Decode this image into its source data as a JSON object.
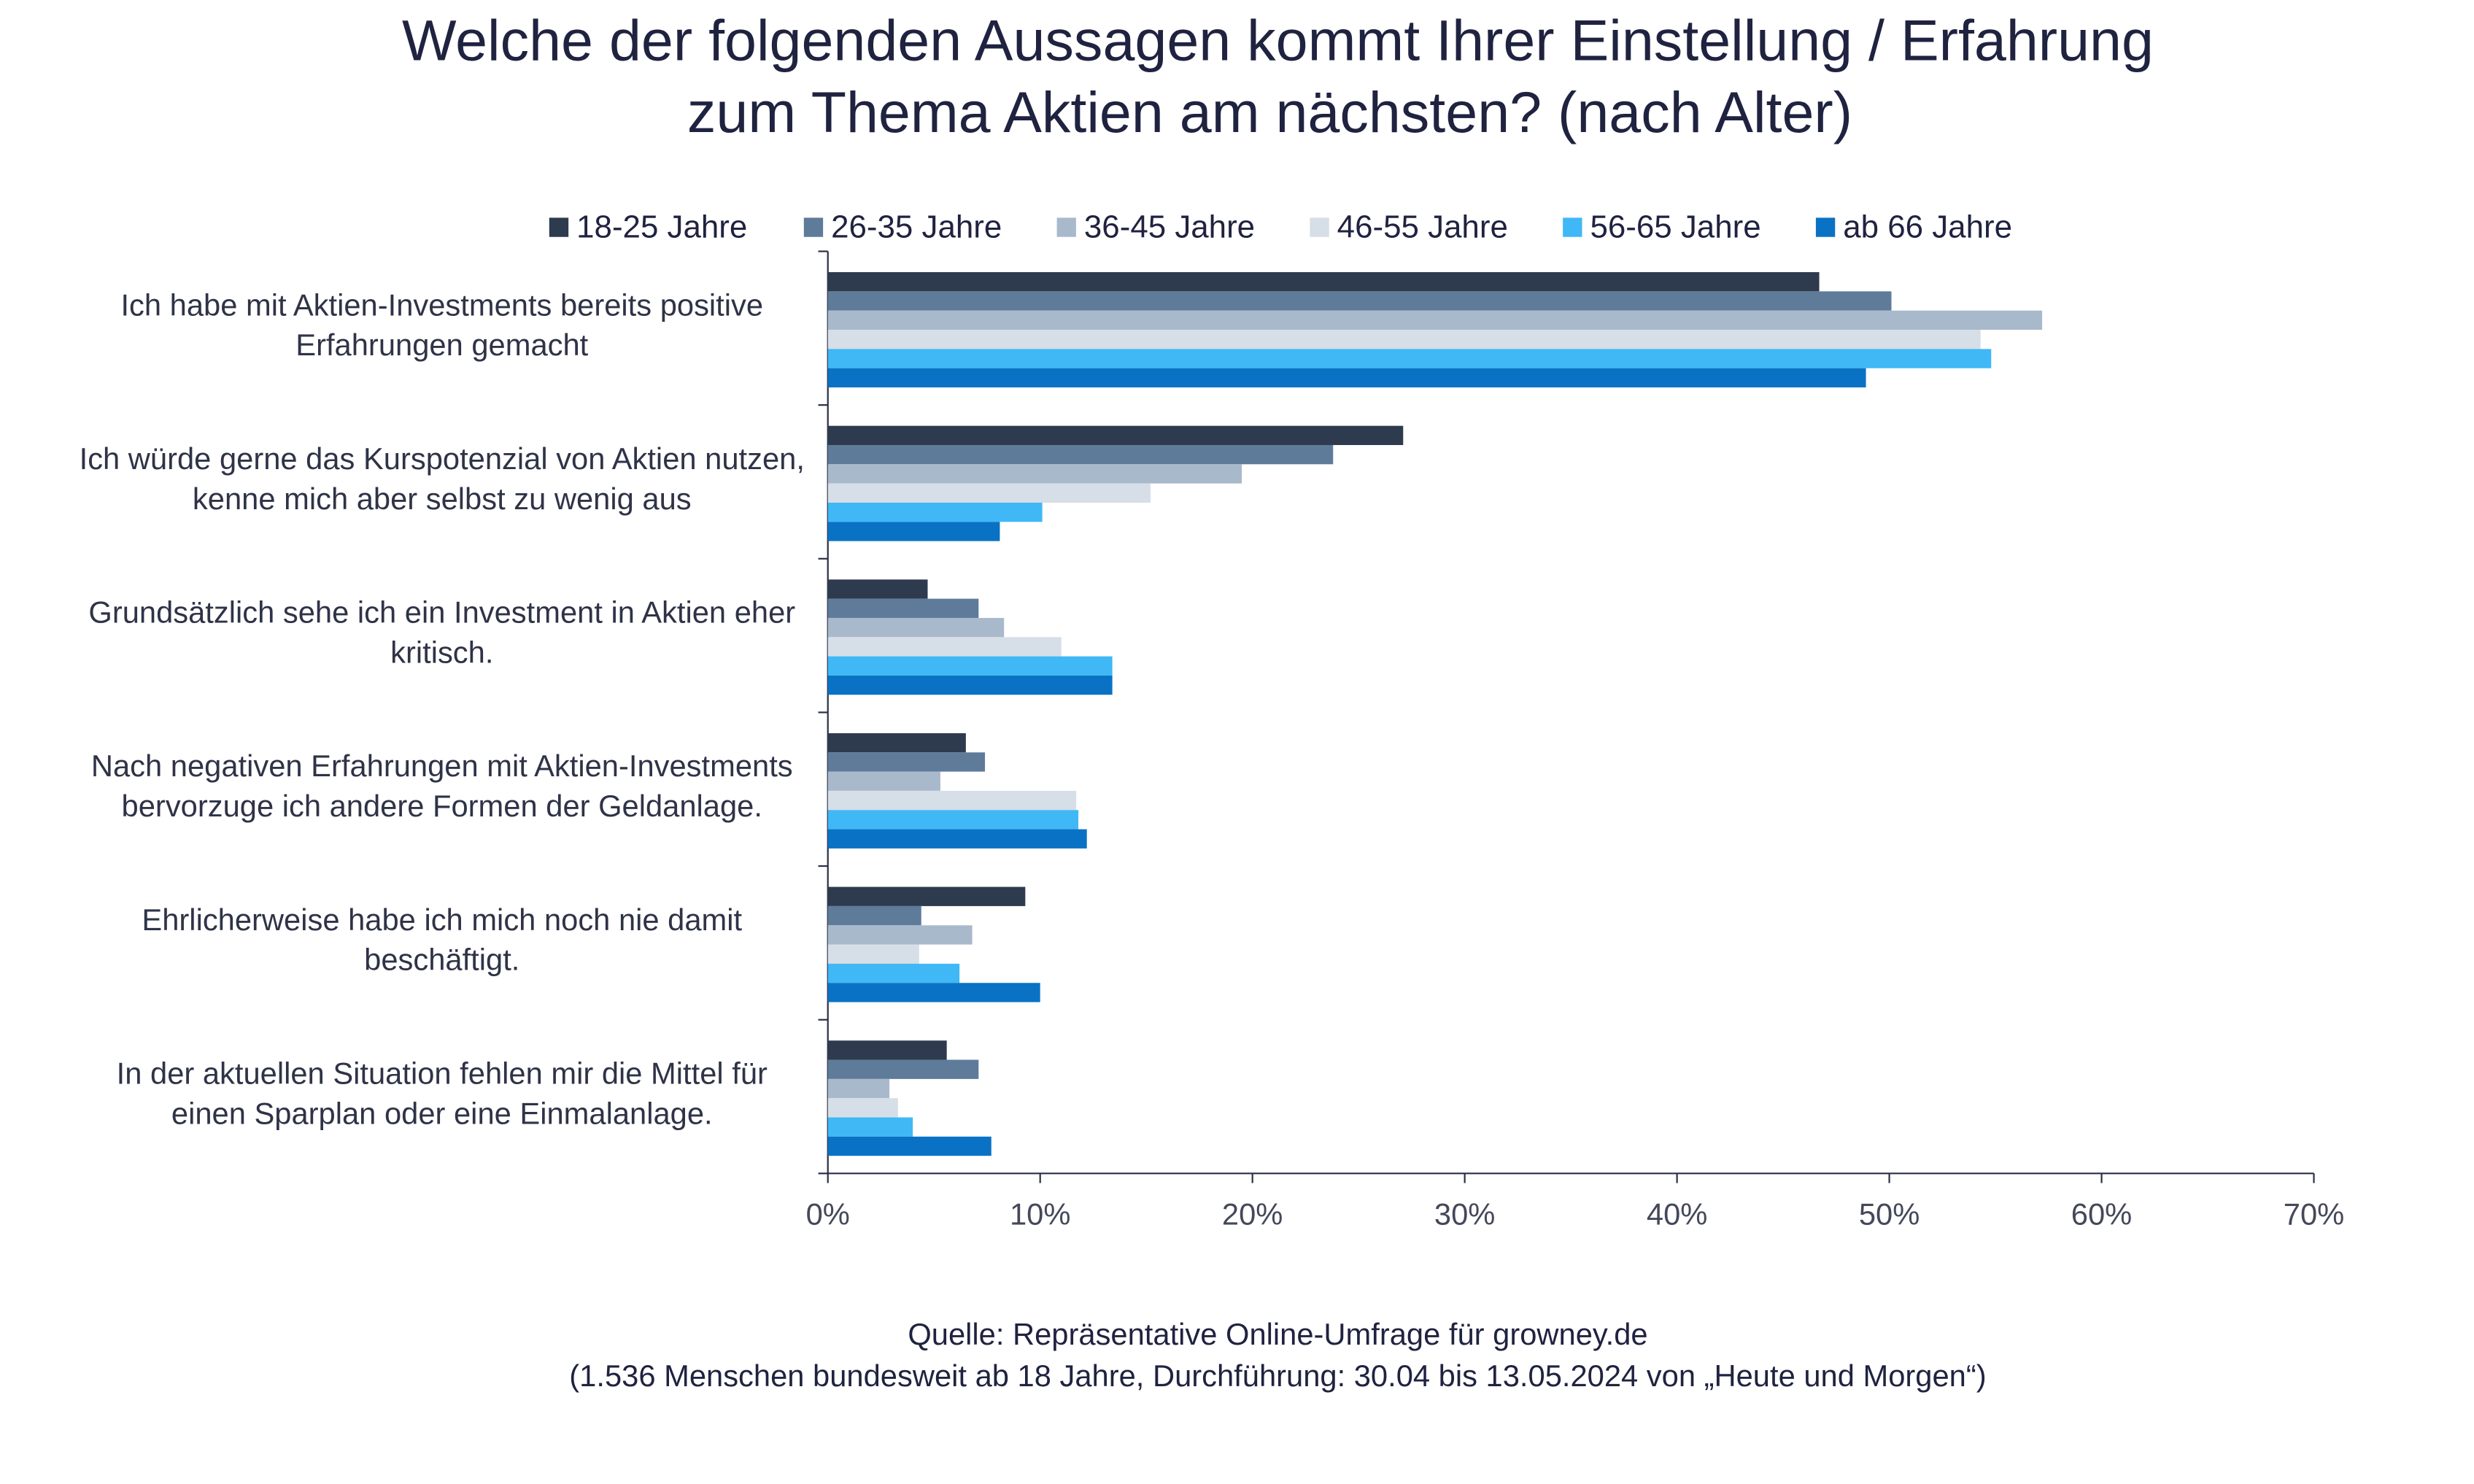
{
  "chart_data": {
    "type": "hbar",
    "title": [
      "Welche der folgenden Aussagen kommt Ihrer Einstellung / Erfahrung",
      "zum Thema Aktien am nächsten? (nach Alter)"
    ],
    "categories": [
      [
        "Ich habe mit Aktien-Investments bereits positive",
        "Erfahrungen gemacht"
      ],
      [
        "Ich würde gerne das Kurspotenzial von Aktien nutzen,",
        "kenne mich aber selbst zu wenig aus"
      ],
      [
        "Grundsätzlich sehe ich ein Investment in Aktien eher",
        "kritisch."
      ],
      [
        "Nach negativen Erfahrungen mit Aktien-Investments",
        "bervorzuge ich andere Formen der Geldanlage."
      ],
      [
        "Ehrlicherweise habe ich mich noch nie damit",
        "beschäftigt."
      ],
      [
        "In der aktuellen Situation fehlen mir die Mittel für",
        "einen Sparplan oder eine Einmalanlage."
      ]
    ],
    "series": [
      {
        "name": "18-25 Jahre",
        "color": "#2e3a4e",
        "values": [
          46.7,
          27.1,
          4.7,
          6.5,
          9.3,
          5.6
        ]
      },
      {
        "name": "26-35 Jahre",
        "color": "#5f7b9a",
        "values": [
          50.1,
          23.8,
          7.1,
          7.4,
          4.4,
          7.1
        ]
      },
      {
        "name": "36-45 Jahre",
        "color": "#a9b9cc",
        "values": [
          57.2,
          19.5,
          8.3,
          5.3,
          6.8,
          2.9
        ]
      },
      {
        "name": "46-55 Jahre",
        "color": "#d6dee7",
        "values": [
          54.3,
          15.2,
          11.0,
          11.7,
          4.3,
          3.3
        ]
      },
      {
        "name": "56-65 Jahre",
        "color": "#3fb8f5",
        "values": [
          54.8,
          10.1,
          13.4,
          11.8,
          6.2,
          4.0
        ]
      },
      {
        "name": "ab 66 Jahre",
        "color": "#0a72c4",
        "values": [
          48.9,
          8.1,
          13.4,
          12.2,
          10.0,
          7.7
        ]
      }
    ],
    "xlim": [
      0,
      70
    ],
    "xticks": [
      {
        "value": 0,
        "label": "0%"
      },
      {
        "value": 10,
        "label": "10%"
      },
      {
        "value": 20,
        "label": "20%"
      },
      {
        "value": 30,
        "label": "30%"
      },
      {
        "value": 40,
        "label": "40%"
      },
      {
        "value": 50,
        "label": "50%"
      },
      {
        "value": 60,
        "label": "60%"
      },
      {
        "value": 70,
        "label": "70%"
      }
    ],
    "legend": "top",
    "source": [
      "Quelle: Repräsentative Online-Umfrage für growney.de",
      "(1.536 Menschen bundesweit ab 18 Jahre, Durchführung: 30.04 bis 13.05.2024 von „Heute und Morgen“)"
    ]
  }
}
